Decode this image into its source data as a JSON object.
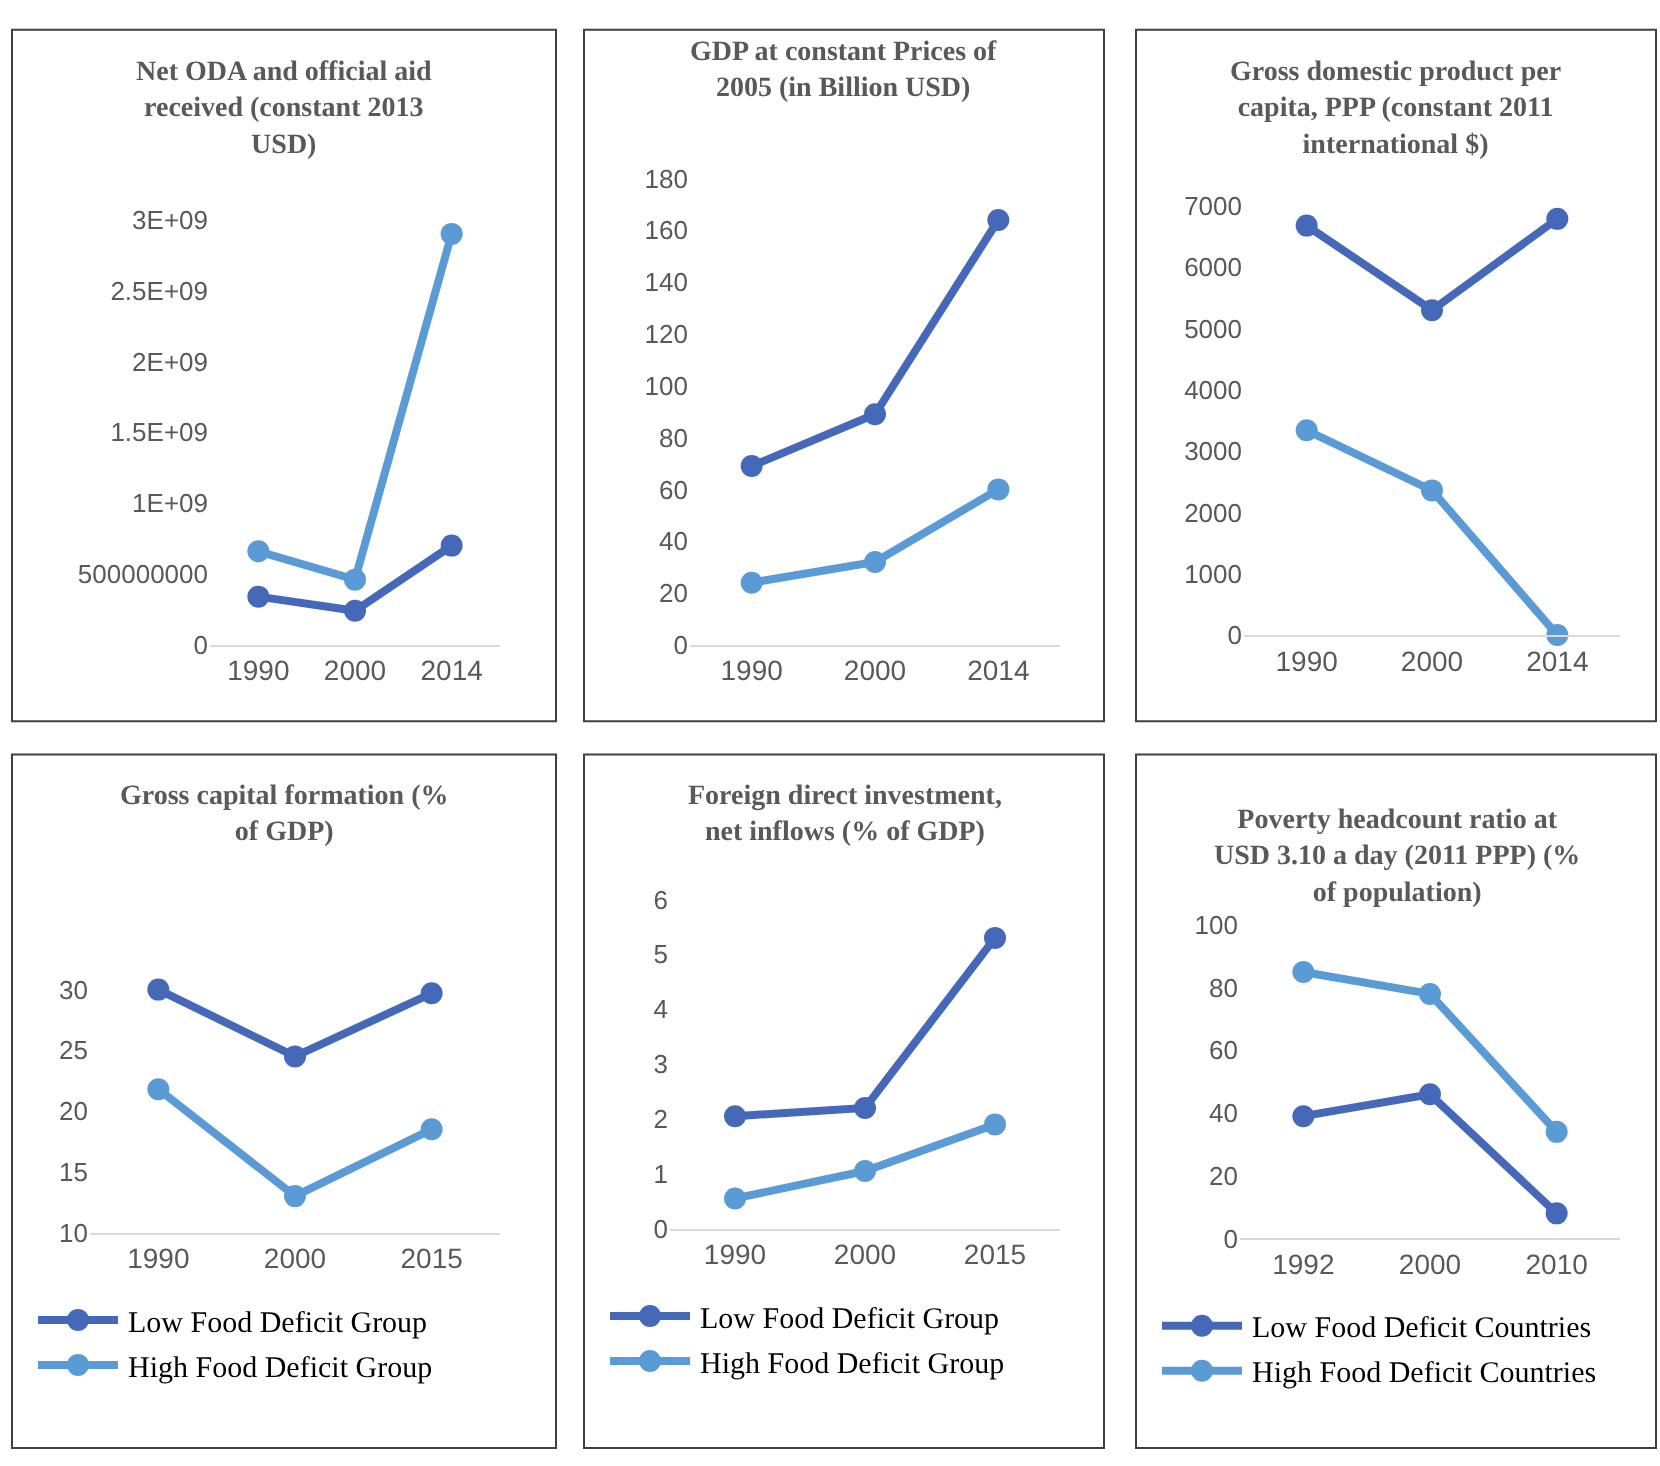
{
  "chart_data": [
    {
      "type": "line",
      "title": "Net ODA and official aid received (constant 2013 USD)",
      "categories": [
        "1990",
        "2000",
        "2014"
      ],
      "marker": "circle",
      "grid": false,
      "legend": false,
      "series": [
        {
          "color": "#4569b8",
          "values": [
            340000000,
            240000000,
            700000000
          ]
        },
        {
          "color": "#5b9bd5",
          "values": [
            660000000,
            460000000,
            2900000000
          ]
        }
      ],
      "ylim": [
        0,
        3000000000
      ],
      "yticks": [
        0,
        500000000,
        {
          "value": 1000000000,
          "label": "1E+09"
        },
        {
          "value": 1500000000,
          "label": "1.5E+09"
        },
        {
          "value": 2000000000,
          "label": "2E+09"
        },
        {
          "value": 2500000000,
          "label": "2.5E+09"
        },
        {
          "value": 3000000000,
          "label": "3E+09"
        }
      ]
    },
    {
      "type": "line",
      "title": "GDP at constant Prices of 2005 (in Billion USD)",
      "categories": [
        "1990",
        "2000",
        "2014"
      ],
      "marker": "circle",
      "grid": false,
      "legend": false,
      "series": [
        {
          "color": "#4569b8",
          "values": [
            69,
            89,
            164
          ]
        },
        {
          "color": "#5b9bd5",
          "values": [
            24,
            32,
            60
          ]
        }
      ],
      "ylim": [
        0,
        180
      ],
      "yticks": [
        0,
        20,
        40,
        60,
        80,
        100,
        120,
        140,
        160,
        180
      ]
    },
    {
      "type": "line",
      "title": "Gross domestic product per capita, PPP (constant 2011 international $)",
      "categories": [
        "1990",
        "2000",
        "2014"
      ],
      "marker": "circle",
      "grid": false,
      "legend": false,
      "series": [
        {
          "color": "#4569b8",
          "values": [
            6680,
            5300,
            6790
          ]
        },
        {
          "color": "#5b9bd5",
          "values": [
            3340,
            2360,
            0
          ]
        }
      ],
      "ylim": [
        0,
        7000
      ],
      "yticks": [
        0,
        1000,
        2000,
        3000,
        4000,
        5000,
        6000,
        7000
      ]
    },
    {
      "type": "line",
      "title": "Gross capital formation (% of GDP)",
      "categories": [
        "1990",
        "2000",
        "2015"
      ],
      "marker": "circle",
      "grid": false,
      "legend": "bottom",
      "series": [
        {
          "name": "Low Food Deficit Group",
          "color": "#4569b8",
          "values": [
            30,
            24.5,
            29.7
          ]
        },
        {
          "name": "High Food Deficit Group",
          "color": "#5b9bd5",
          "values": [
            21.8,
            13,
            18.5
          ]
        }
      ],
      "ylim": [
        10,
        30
      ],
      "yticks": [
        10,
        15,
        20,
        25,
        30
      ]
    },
    {
      "type": "line",
      "title": "Foreign direct investment, net inflows (% of GDP)",
      "categories": [
        "1990",
        "2000",
        "2015"
      ],
      "marker": "circle",
      "grid": false,
      "legend": "bottom",
      "series": [
        {
          "name": "Low Food Deficit Group",
          "color": "#4569b8",
          "values": [
            2.05,
            2.2,
            5.3
          ]
        },
        {
          "name": "High Food Deficit Group",
          "color": "#5b9bd5",
          "values": [
            0.55,
            1.05,
            1.9
          ]
        }
      ],
      "ylim": [
        0,
        6
      ],
      "yticks": [
        0,
        1,
        2,
        3,
        4,
        5,
        6
      ]
    },
    {
      "type": "line",
      "title": "Poverty headcount ratio at USD 3.10 a day (2011 PPP) (% of population)",
      "categories": [
        "1992",
        "2000",
        "2010"
      ],
      "marker": "circle",
      "grid": false,
      "legend": "bottom",
      "series": [
        {
          "name": "Low Food Deficit Countries",
          "color": "#4569b8",
          "values": [
            39,
            46,
            8
          ]
        },
        {
          "name": "High Food Deficit Countries",
          "color": "#5b9bd5",
          "values": [
            85,
            78,
            34
          ]
        }
      ],
      "ylim": [
        0,
        100
      ],
      "yticks": [
        0,
        20,
        40,
        60,
        80,
        100
      ]
    }
  ]
}
